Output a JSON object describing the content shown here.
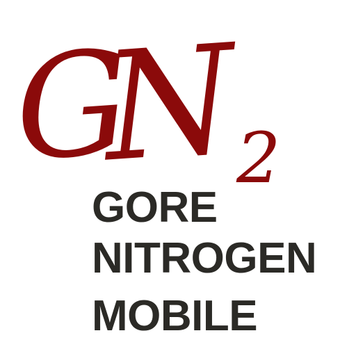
{
  "logo": {
    "monogram_g": "G",
    "monogram_n": "N",
    "subscript": "2",
    "color": "#8b0a0a"
  },
  "wordmark": {
    "lines": [
      "GORE",
      "NITROGEN",
      "MOBILE"
    ],
    "color": "#2b2a26"
  }
}
